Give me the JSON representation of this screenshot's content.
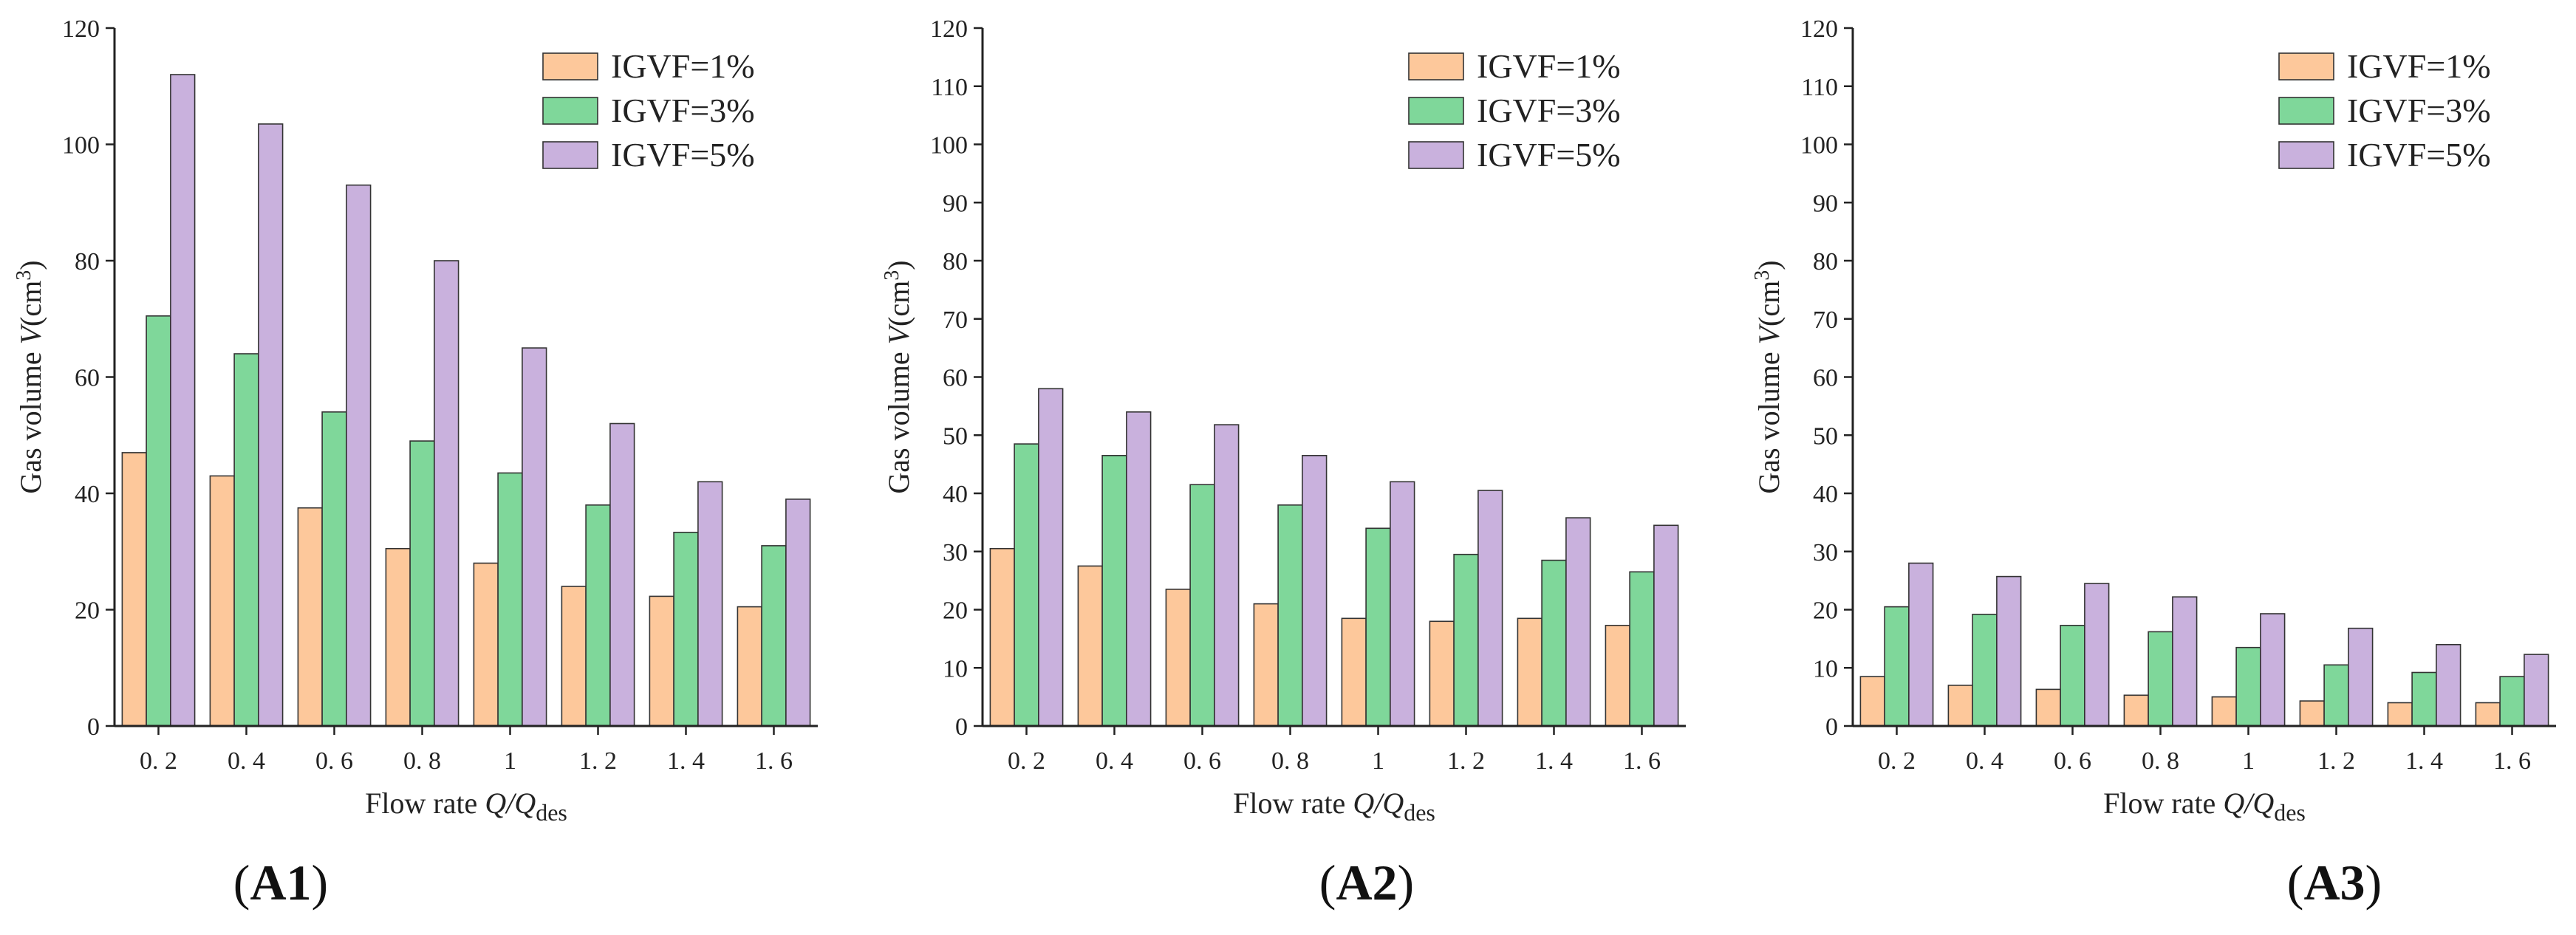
{
  "colors": {
    "series": [
      "#fdc89b",
      "#7fd79a",
      "#c9b1dd"
    ],
    "axis": "#222222"
  },
  "chart_data": [
    {
      "type": "bar",
      "panel": "A1",
      "caption": {
        "open": "(",
        "label": "A1",
        "close": ")"
      },
      "categories": [
        "0. 2",
        "0. 4",
        "0. 6",
        "0. 8",
        "1",
        "1. 2",
        "1. 4",
        "1. 6"
      ],
      "series": [
        {
          "name": "IGVF=1%",
          "values": [
            47,
            43,
            37.5,
            30.5,
            28,
            24,
            22.3,
            20.5
          ]
        },
        {
          "name": "IGVF=3%",
          "values": [
            70.5,
            64,
            54,
            49,
            43.5,
            38,
            33.3,
            31
          ]
        },
        {
          "name": "IGVF=5%",
          "values": [
            112,
            103.5,
            93,
            80,
            65,
            52,
            42,
            39
          ]
        }
      ],
      "ylim": [
        0,
        120
      ],
      "yticks": [
        0,
        20,
        40,
        60,
        80,
        100,
        120
      ],
      "ylabel": {
        "main": "Gas volume",
        "var": "V",
        "unit": "(cm",
        "unit_sup": "3",
        "unit_close": ")"
      },
      "xlabel": {
        "main": "Flow rate",
        "var": "Q/Q",
        "sub": "des"
      },
      "legend": "top-right"
    },
    {
      "type": "bar",
      "panel": "A2",
      "caption": {
        "open": "(",
        "label": "A2",
        "close": ")"
      },
      "categories": [
        "0. 2",
        "0. 4",
        "0. 6",
        "0. 8",
        "1",
        "1. 2",
        "1. 4",
        "1. 6"
      ],
      "series": [
        {
          "name": "IGVF=1%",
          "values": [
            30.5,
            27.5,
            23.5,
            21,
            18.5,
            18,
            18.5,
            17.3
          ]
        },
        {
          "name": "IGVF=3%",
          "values": [
            48.5,
            46.5,
            41.5,
            38,
            34,
            29.5,
            28.5,
            26.5
          ]
        },
        {
          "name": "IGVF=5%",
          "values": [
            58,
            54,
            51.8,
            46.5,
            42,
            40.5,
            35.8,
            34.5
          ]
        }
      ],
      "ylim": [
        0,
        120
      ],
      "yticks": [
        0,
        10,
        20,
        30,
        40,
        50,
        60,
        70,
        80,
        90,
        100,
        110,
        120
      ],
      "ylabel": {
        "main": "Gas volume",
        "var": "V",
        "unit": "(cm",
        "unit_sup": "3",
        "unit_close": ")"
      },
      "xlabel": {
        "main": "Flow rate",
        "var": "Q/Q",
        "sub": "des"
      },
      "legend": "top-right"
    },
    {
      "type": "bar",
      "panel": "A3",
      "caption": {
        "open": "(",
        "label": "A3",
        "close": ")"
      },
      "categories": [
        "0. 2",
        "0. 4",
        "0. 6",
        "0. 8",
        "1",
        "1. 2",
        "1. 4",
        "1. 6"
      ],
      "series": [
        {
          "name": "IGVF=1%",
          "values": [
            8.5,
            7,
            6.3,
            5.3,
            5,
            4.3,
            4,
            4
          ]
        },
        {
          "name": "IGVF=3%",
          "values": [
            20.5,
            19.2,
            17.3,
            16.2,
            13.5,
            10.5,
            9.2,
            8.5
          ]
        },
        {
          "name": "IGVF=5%",
          "values": [
            28,
            25.7,
            24.5,
            22.2,
            19.3,
            16.8,
            14,
            12.3
          ]
        }
      ],
      "ylim": [
        0,
        120
      ],
      "yticks": [
        0,
        10,
        20,
        30,
        40,
        50,
        60,
        70,
        80,
        90,
        100,
        110,
        120
      ],
      "ylabel": {
        "main": "Gas volume",
        "var": "V",
        "unit": "(cm",
        "unit_sup": "3",
        "unit_close": ")"
      },
      "xlabel": {
        "main": "Flow rate",
        "var": "Q/Q",
        "sub": "des"
      },
      "legend": "top-right"
    }
  ]
}
